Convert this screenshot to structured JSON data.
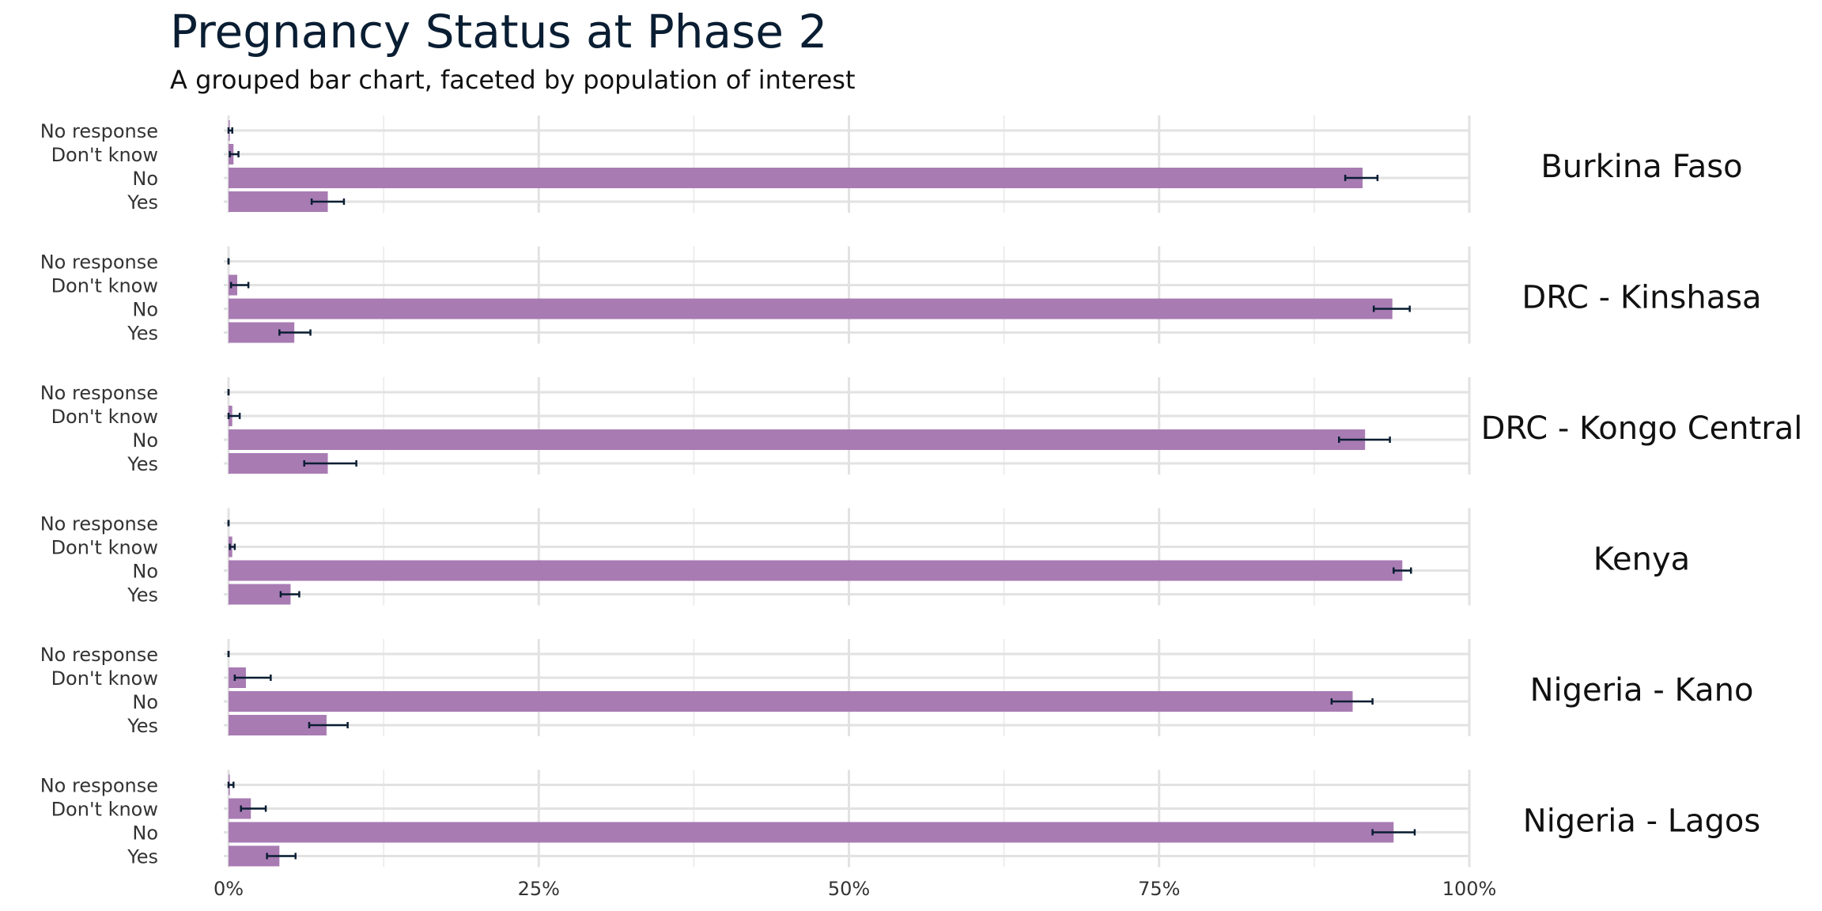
{
  "chart_data": {
    "type": "bar",
    "orientation": "horizontal",
    "title": "Pregnancy Status at Phase 2",
    "subtitle": "A grouped bar chart, faceted by population of interest",
    "categories": [
      "No response",
      "Don't know",
      "No",
      "Yes"
    ],
    "x_ticks": [
      "0%",
      "25%",
      "50%",
      "75%",
      "100%"
    ],
    "xlim": [
      0,
      100
    ],
    "grid": true,
    "bar_color": "#a87bb3",
    "errorbar_color": "#0a1e33",
    "facets": [
      {
        "name": "Burkina Faso",
        "values": [
          0.1,
          0.4,
          91.4,
          8.0
        ],
        "ci_low": [
          0.0,
          0.1,
          90.0,
          6.7
        ],
        "ci_high": [
          0.3,
          0.8,
          92.6,
          9.3
        ]
      },
      {
        "name": "DRC - Kinshasa",
        "values": [
          0.0,
          0.7,
          93.8,
          5.3
        ],
        "ci_low": [
          0.0,
          0.2,
          92.3,
          4.1
        ],
        "ci_high": [
          0.0,
          1.6,
          95.2,
          6.6
        ]
      },
      {
        "name": "DRC - Kongo Central",
        "values": [
          0.0,
          0.3,
          91.6,
          8.0
        ],
        "ci_low": [
          0.0,
          0.0,
          89.5,
          6.1
        ],
        "ci_high": [
          0.0,
          0.9,
          93.6,
          10.3
        ]
      },
      {
        "name": "Kenya",
        "values": [
          0.0,
          0.3,
          94.6,
          5.0
        ],
        "ci_low": [
          0.0,
          0.1,
          93.9,
          4.2
        ],
        "ci_high": [
          0.0,
          0.5,
          95.3,
          5.7
        ]
      },
      {
        "name": "Nigeria - Kano",
        "values": [
          0.0,
          1.4,
          90.6,
          7.9
        ],
        "ci_low": [
          0.0,
          0.5,
          88.9,
          6.5
        ],
        "ci_high": [
          0.0,
          3.4,
          92.2,
          9.6
        ]
      },
      {
        "name": "Nigeria - Lagos",
        "values": [
          0.1,
          1.8,
          93.9,
          4.1
        ],
        "ci_low": [
          0.0,
          1.0,
          92.2,
          3.1
        ],
        "ci_high": [
          0.4,
          3.0,
          95.6,
          5.4
        ]
      }
    ]
  }
}
